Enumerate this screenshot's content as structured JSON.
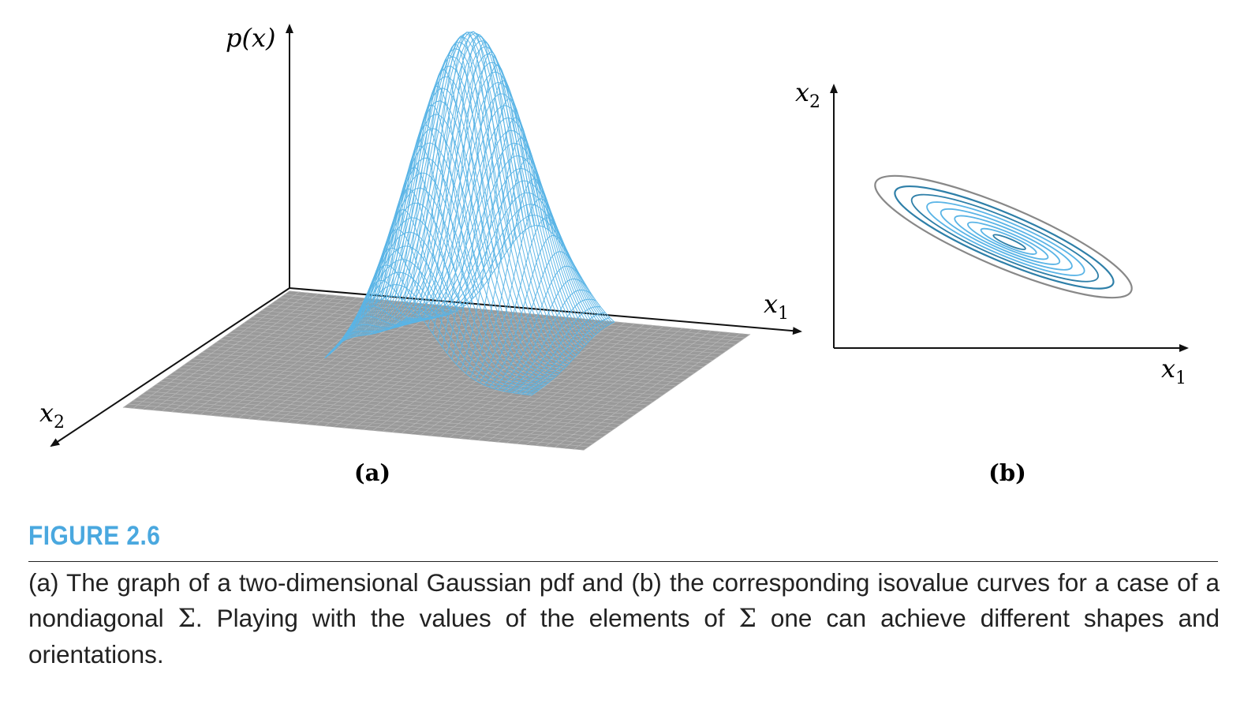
{
  "panel_a": {
    "axis_z": "p(x)",
    "axis_x1": "x",
    "axis_x1_sub": "1",
    "axis_x2": "x",
    "axis_x2_sub": "2",
    "label": "(a)"
  },
  "panel_b": {
    "axis_x1": "x",
    "axis_x1_sub": "1",
    "axis_x2": "x",
    "axis_x2_sub": "2",
    "label": "(b)"
  },
  "colors": {
    "surface": "#5ab4e6",
    "floor": "#8a8a8a",
    "contour_outer": "#888888",
    "contour_dark": "#2e7fa8",
    "contour_light": "#5ab4e6",
    "title": "#4aa8df"
  },
  "figure": {
    "title": "FIGURE 2.6",
    "caption_part1": "(a) The graph of a two-dimensional Gaussian pdf and (b) the corresponding isovalue curves for a case of a nondiagonal ",
    "sigma": "Σ",
    "caption_part2": ".  Playing with the values of the elements of ",
    "caption_part3": " one can achieve different shapes and orientations."
  }
}
